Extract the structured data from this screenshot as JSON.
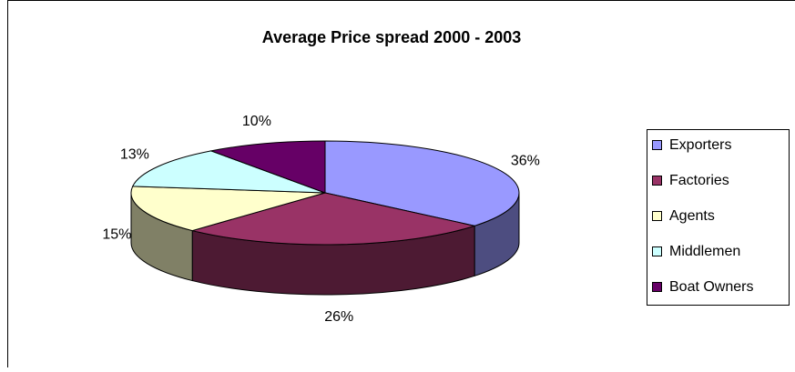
{
  "chart_data": {
    "type": "pie3d",
    "title": "Average Price spread 2000 - 2003",
    "categories": [
      "Exporters",
      "Factories",
      "Agents",
      "Middlemen",
      "Boat Owners"
    ],
    "values": [
      36,
      26,
      15,
      13,
      10
    ],
    "value_labels": [
      "36%",
      "26%",
      "15%",
      "13%",
      "10%"
    ],
    "colors": [
      "#9999ff",
      "#993366",
      "#ffffcc",
      "#ccffff",
      "#660066"
    ],
    "legend": "right"
  }
}
